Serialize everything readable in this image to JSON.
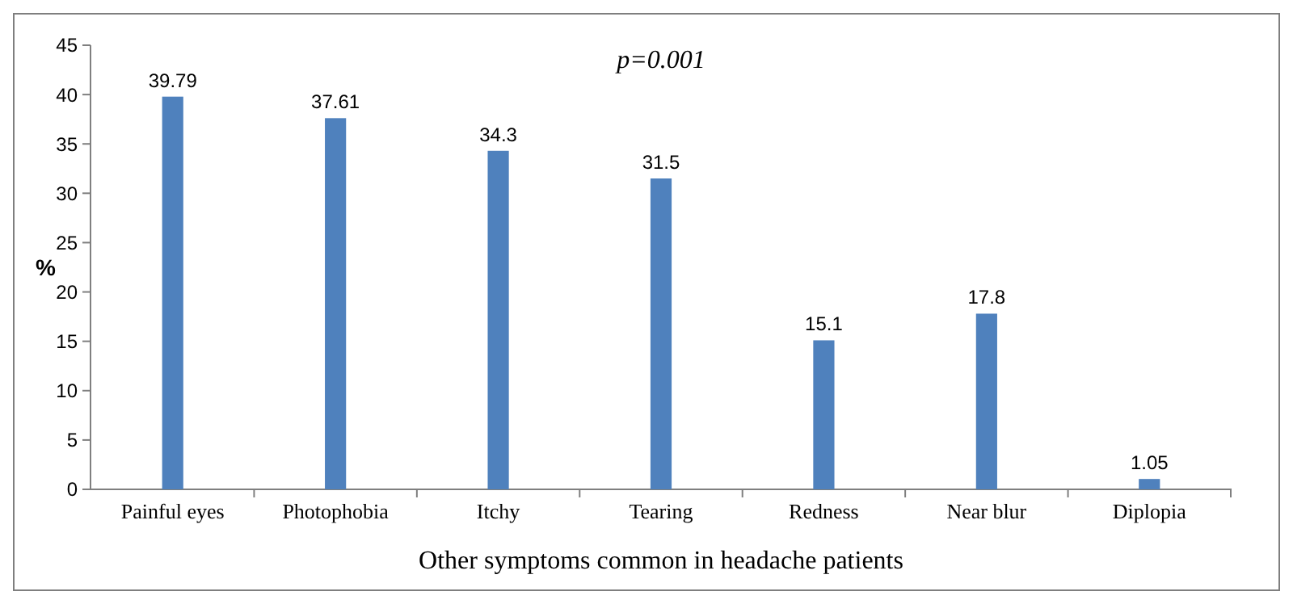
{
  "chart_data": {
    "type": "bar",
    "categories": [
      "Painful eyes",
      "Photophobia",
      "Itchy",
      "Tearing",
      "Redness",
      "Near blur",
      "Diplopia"
    ],
    "values": [
      39.79,
      37.61,
      34.3,
      31.5,
      15.1,
      17.8,
      1.05
    ],
    "color": "#4f81bd",
    "ylim": [
      0,
      45
    ],
    "yticks": [
      0,
      5,
      10,
      15,
      20,
      25,
      30,
      35,
      40,
      45
    ],
    "ylabel": "%",
    "xlabel": "Other  symptoms common in headache patients",
    "annotations": [
      "p=0.001"
    ],
    "data_labels": true,
    "grid": false
  }
}
